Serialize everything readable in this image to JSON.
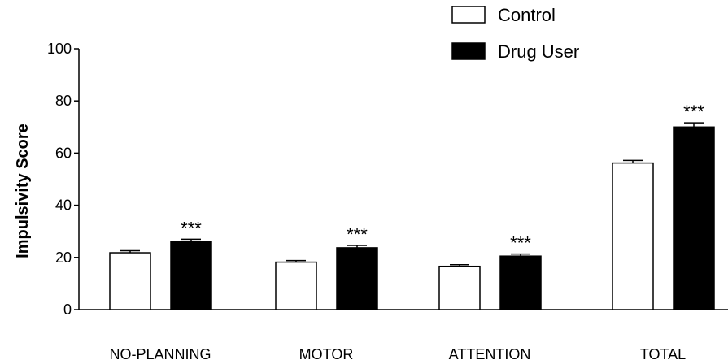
{
  "chart_data": {
    "type": "bar",
    "title": "",
    "xlabel": "",
    "ylabel": "Impulsivity Score",
    "ylim": [
      0,
      100
    ],
    "yticks": [
      0,
      20,
      40,
      60,
      80,
      100
    ],
    "categories": [
      "NO-PLANNING",
      "MOTOR",
      "ATTENTION",
      "TOTAL"
    ],
    "series": [
      {
        "name": "Control",
        "color": "#ffffff",
        "values": [
          21.8,
          18.2,
          16.6,
          56.2
        ],
        "errors": [
          0.8,
          0.6,
          0.6,
          1.0
        ]
      },
      {
        "name": "Drug User",
        "color": "#000000",
        "values": [
          26.2,
          23.7,
          20.5,
          70.0
        ],
        "errors": [
          0.8,
          0.9,
          0.8,
          1.6
        ]
      }
    ],
    "annotations": [
      "***",
      "***",
      "***",
      "***"
    ],
    "legend_position": "top-right",
    "grid": false
  }
}
